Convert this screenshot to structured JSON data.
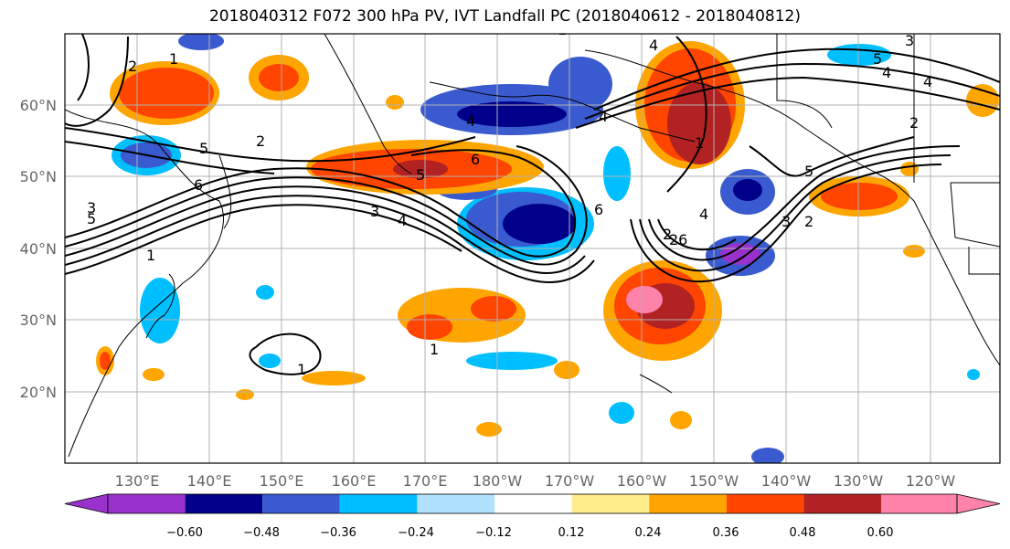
{
  "title": "2018040312 F072 300 hPa PV, IVT Landfall PC (2018040612 - 2018040812)",
  "lat_labels": [
    "60°N",
    "50°N",
    "40°N",
    "30°N",
    "20°N"
  ],
  "lon_labels": [
    "130°E",
    "140°E",
    "150°E",
    "160°E",
    "170°E",
    "180°W",
    "170°W",
    "160°W",
    "150°W",
    "140°W",
    "130°W",
    "120°W"
  ],
  "colorbar": {
    "colors": [
      "#9932cc",
      "#00008b",
      "#3a5bcf",
      "#00bfff",
      "#b0e2ff",
      "#ffffff",
      "#ffec8b",
      "#ffa500",
      "#ff4500",
      "#b22222",
      "#ff82ab"
    ],
    "tick_labels": [
      "−0.60",
      "−0.48",
      "−0.36",
      "−0.24",
      "−0.12",
      "0.12",
      "0.24",
      "0.36",
      "0.48",
      "0.60"
    ]
  },
  "contour_labels": [
    "2",
    "1",
    "5",
    "6",
    "2",
    "5",
    "6",
    "4",
    "5",
    "3",
    "4",
    "1",
    "1",
    "6",
    "4",
    "4",
    "5",
    "2",
    "3",
    "2",
    "26",
    "4",
    "5",
    "3",
    "1",
    "4",
    "1",
    "1",
    "3",
    "4",
    "2"
  ]
}
